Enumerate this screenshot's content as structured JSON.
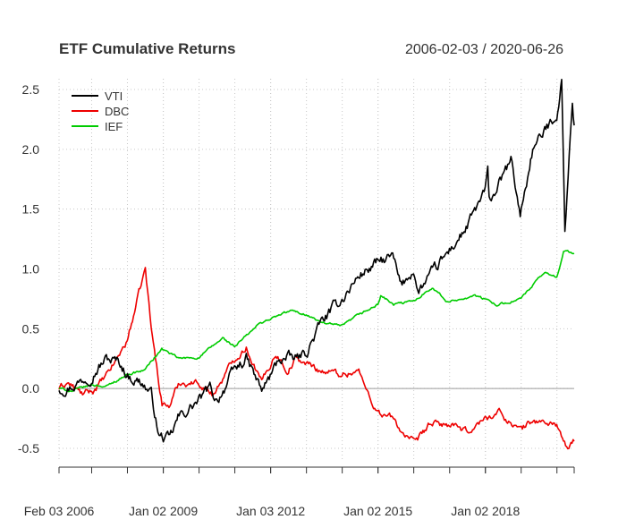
{
  "chart_data": {
    "type": "line",
    "title": "ETF Cumulative Returns",
    "date_range": "2006-02-03 / 2020-06-26",
    "xlabel": "",
    "ylabel": "",
    "grid": true,
    "legend_position": "top-left",
    "ylim": [
      -0.55,
      2.6
    ],
    "y_ticks": [
      "2.5",
      "2.0",
      "1.5",
      "1.0",
      "0.5",
      "0.0",
      "-0.5"
    ],
    "y_tick_values": [
      2.5,
      2.0,
      1.5,
      1.0,
      0.5,
      0.0,
      -0.5
    ],
    "x_tick_labels": [
      "Feb 03 2006",
      "Jan 02 2009",
      "Jan 03 2012",
      "Jan 02 2015",
      "Jan 02 2018"
    ],
    "x_tick_dates": [
      "2006-02-03",
      "2009-01-02",
      "2012-01-03",
      "2015-01-02",
      "2018-01-02"
    ],
    "xlim": [
      "2006-02-03",
      "2020-06-26"
    ],
    "series": [
      {
        "name": "VTI",
        "color": "#000000",
        "points": [
          [
            "2006-02-03",
            0.0
          ],
          [
            "2006-06-15",
            0.02
          ],
          [
            "2007-01-01",
            0.12
          ],
          [
            "2007-06-01",
            0.25
          ],
          [
            "2007-10-09",
            0.22
          ],
          [
            "2008-01-15",
            0.1
          ],
          [
            "2008-06-01",
            0.05
          ],
          [
            "2008-09-01",
            -0.05
          ],
          [
            "2008-11-20",
            -0.4
          ],
          [
            "2009-03-09",
            -0.43
          ],
          [
            "2009-06-01",
            -0.25
          ],
          [
            "2009-12-31",
            -0.1
          ],
          [
            "2010-04-23",
            0.0
          ],
          [
            "2010-07-01",
            -0.1
          ],
          [
            "2010-12-31",
            0.15
          ],
          [
            "2011-04-29",
            0.25
          ],
          [
            "2011-10-03",
            -0.02
          ],
          [
            "2011-12-30",
            0.1
          ],
          [
            "2012-03-30",
            0.25
          ],
          [
            "2012-10-01",
            0.25
          ],
          [
            "2012-12-31",
            0.3
          ],
          [
            "2013-06-01",
            0.55
          ],
          [
            "2013-12-31",
            0.75
          ],
          [
            "2014-06-30",
            0.95
          ],
          [
            "2014-12-31",
            1.05
          ],
          [
            "2015-06-01",
            1.1
          ],
          [
            "2015-08-25",
            0.85
          ],
          [
            "2015-12-31",
            1.0
          ],
          [
            "2016-02-11",
            0.8
          ],
          [
            "2016-06-30",
            0.95
          ],
          [
            "2016-12-31",
            1.15
          ],
          [
            "2017-06-30",
            1.35
          ],
          [
            "2017-12-31",
            1.65
          ],
          [
            "2018-01-26",
            1.8
          ],
          [
            "2018-02-09",
            1.55
          ],
          [
            "2018-09-20",
            1.9
          ],
          [
            "2018-12-24",
            1.45
          ],
          [
            "2019-04-30",
            2.0
          ],
          [
            "2019-12-31",
            2.3
          ],
          [
            "2020-02-19",
            2.57
          ],
          [
            "2020-03-23",
            1.33
          ],
          [
            "2020-06-08",
            2.4
          ],
          [
            "2020-06-26",
            2.2
          ]
        ]
      },
      {
        "name": "DBC",
        "color": "#ee0000",
        "points": [
          [
            "2006-02-03",
            0.0
          ],
          [
            "2006-05-01",
            0.05
          ],
          [
            "2006-10-01",
            -0.05
          ],
          [
            "2007-01-15",
            -0.02
          ],
          [
            "2007-06-01",
            0.1
          ],
          [
            "2007-12-31",
            0.4
          ],
          [
            "2008-03-15",
            0.65
          ],
          [
            "2008-07-03",
            1.0
          ],
          [
            "2008-09-01",
            0.5
          ],
          [
            "2008-12-20",
            -0.12
          ],
          [
            "2009-03-01",
            -0.15
          ],
          [
            "2009-06-15",
            0.05
          ],
          [
            "2009-12-31",
            0.05
          ],
          [
            "2010-05-25",
            -0.05
          ],
          [
            "2010-12-31",
            0.25
          ],
          [
            "2011-04-29",
            0.35
          ],
          [
            "2011-10-03",
            0.05
          ],
          [
            "2012-02-24",
            0.3
          ],
          [
            "2012-06-21",
            0.15
          ],
          [
            "2012-09-14",
            0.25
          ],
          [
            "2013-06-01",
            0.15
          ],
          [
            "2013-12-31",
            0.12
          ],
          [
            "2014-06-20",
            0.15
          ],
          [
            "2014-08-01",
            0.05
          ],
          [
            "2014-12-31",
            -0.2
          ],
          [
            "2015-06-01",
            -0.25
          ],
          [
            "2015-08-24",
            -0.35
          ],
          [
            "2016-01-20",
            -0.47
          ],
          [
            "2016-06-08",
            -0.3
          ],
          [
            "2016-12-31",
            -0.3
          ],
          [
            "2017-06-21",
            -0.37
          ],
          [
            "2017-12-31",
            -0.25
          ],
          [
            "2018-05-22",
            -0.2
          ],
          [
            "2018-12-24",
            -0.35
          ],
          [
            "2019-04-23",
            -0.27
          ],
          [
            "2019-12-31",
            -0.3
          ],
          [
            "2020-01-15",
            -0.32
          ],
          [
            "2020-04-21",
            -0.53
          ],
          [
            "2020-06-26",
            -0.44
          ]
        ]
      },
      {
        "name": "IEF",
        "color": "#00cc00",
        "points": [
          [
            "2006-02-03",
            0.0
          ],
          [
            "2006-06-15",
            -0.02
          ],
          [
            "2006-12-31",
            0.03
          ],
          [
            "2007-06-12",
            0.02
          ],
          [
            "2007-12-31",
            0.12
          ],
          [
            "2008-06-15",
            0.15
          ],
          [
            "2008-12-18",
            0.33
          ],
          [
            "2009-06-10",
            0.25
          ],
          [
            "2009-12-31",
            0.26
          ],
          [
            "2010-08-31",
            0.42
          ],
          [
            "2010-12-31",
            0.35
          ],
          [
            "2011-09-22",
            0.55
          ],
          [
            "2012-07-25",
            0.65
          ],
          [
            "2012-12-31",
            0.62
          ],
          [
            "2013-06-01",
            0.55
          ],
          [
            "2013-12-31",
            0.52
          ],
          [
            "2014-06-30",
            0.62
          ],
          [
            "2014-12-31",
            0.7
          ],
          [
            "2015-01-30",
            0.78
          ],
          [
            "2015-06-10",
            0.7
          ],
          [
            "2015-12-31",
            0.73
          ],
          [
            "2016-07-08",
            0.85
          ],
          [
            "2016-12-15",
            0.72
          ],
          [
            "2017-09-07",
            0.78
          ],
          [
            "2018-05-17",
            0.7
          ],
          [
            "2018-12-31",
            0.75
          ],
          [
            "2019-08-28",
            0.97
          ],
          [
            "2019-12-31",
            0.93
          ],
          [
            "2020-03-09",
            1.15
          ],
          [
            "2020-06-26",
            1.13
          ]
        ]
      }
    ]
  }
}
